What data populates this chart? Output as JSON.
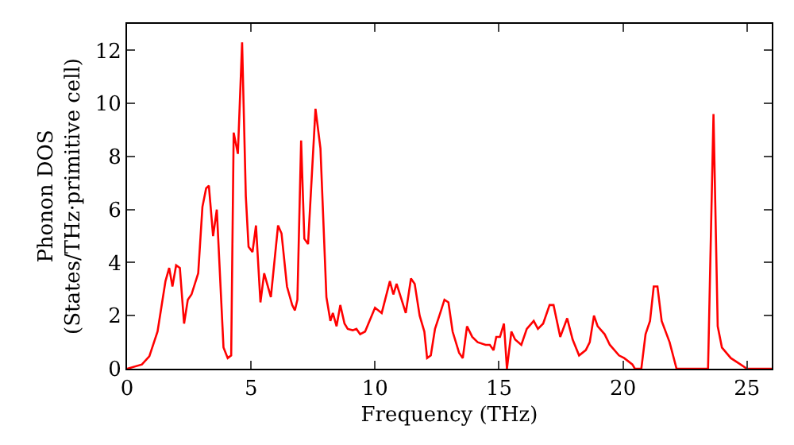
{
  "chart_data": {
    "type": "line",
    "xlabel": "Frequency (THz)",
    "ylabel": "Phonon DOS\n(States/THz·primitive cell)",
    "xlim": [
      0,
      26
    ],
    "ylim": [
      0,
      13
    ],
    "xticks": [
      0,
      5,
      10,
      15,
      20,
      25
    ],
    "yticks": [
      0,
      2,
      4,
      6,
      8,
      10,
      12
    ],
    "marker": "none",
    "line_style": "solid",
    "series": [
      {
        "color": "#ff0000",
        "x": [
          0,
          0.6,
          0.9,
          1.23,
          1.55,
          1.7,
          1.83,
          1.98,
          2.13,
          2.3,
          2.45,
          2.6,
          2.87,
          3.04,
          3.19,
          3.3,
          3.47,
          3.62,
          3.89,
          4.06,
          4.2,
          4.3,
          4.47,
          4.64,
          4.79,
          4.9,
          5.06,
          5.2,
          5.38,
          5.53,
          5.8,
          6.09,
          6.23,
          6.45,
          6.66,
          6.77,
          6.87,
          7.02,
          7.15,
          7.3,
          7.6,
          7.8,
          8.04,
          8.2,
          8.3,
          8.45,
          8.6,
          8.77,
          8.9,
          9.1,
          9.25,
          9.4,
          9.6,
          10.0,
          10.27,
          10.6,
          10.74,
          10.87,
          11.24,
          11.45,
          11.6,
          11.8,
          11.99,
          12.1,
          12.25,
          12.42,
          12.63,
          12.8,
          12.96,
          13.13,
          13.39,
          13.54,
          13.71,
          13.92,
          14.14,
          14.46,
          14.63,
          14.78,
          14.89,
          15.04,
          15.2,
          15.32,
          15.5,
          15.65,
          15.9,
          16.12,
          16.4,
          16.57,
          16.78,
          17.04,
          17.2,
          17.47,
          17.75,
          17.97,
          18.23,
          18.5,
          18.66,
          18.83,
          18.98,
          19.26,
          19.47,
          19.84,
          20.05,
          20.38,
          20.48,
          20.74,
          20.91,
          21.09,
          21.24,
          21.39,
          21.56,
          21.88,
          22.16,
          23.43,
          23.65,
          23.82,
          23.99,
          24.35,
          24.68,
          25.0,
          26
        ],
        "values": [
          0,
          0.16,
          0.47,
          1.4,
          3.3,
          3.8,
          3.1,
          3.9,
          3.8,
          1.7,
          2.6,
          2.8,
          3.6,
          6.1,
          6.8,
          6.9,
          5.0,
          6.0,
          0.8,
          0.4,
          0.5,
          8.9,
          8.1,
          12.3,
          6.5,
          4.6,
          4.4,
          5.4,
          2.5,
          3.6,
          2.7,
          5.4,
          5.1,
          3.1,
          2.4,
          2.2,
          2.6,
          8.6,
          4.9,
          4.7,
          9.8,
          8.3,
          2.7,
          1.8,
          2.1,
          1.6,
          2.4,
          1.7,
          1.5,
          1.45,
          1.5,
          1.3,
          1.4,
          2.3,
          2.1,
          3.3,
          2.8,
          3.2,
          2.1,
          3.4,
          3.2,
          2.0,
          1.4,
          0.4,
          0.5,
          1.5,
          2.1,
          2.6,
          2.5,
          1.4,
          0.6,
          0.4,
          1.6,
          1.2,
          1.0,
          0.9,
          0.9,
          0.7,
          1.2,
          1.2,
          1.7,
          0,
          1.4,
          1.1,
          0.9,
          1.5,
          1.8,
          1.5,
          1.7,
          2.4,
          2.4,
          1.2,
          1.9,
          1.1,
          0.5,
          0.7,
          1.0,
          2.0,
          1.6,
          1.3,
          0.9,
          0.5,
          0.4,
          0.16,
          0,
          0,
          1.3,
          1.8,
          3.1,
          3.1,
          1.8,
          1.0,
          0,
          0,
          9.6,
          1.6,
          0.8,
          0.4,
          0.2,
          0,
          0
        ]
      }
    ]
  }
}
